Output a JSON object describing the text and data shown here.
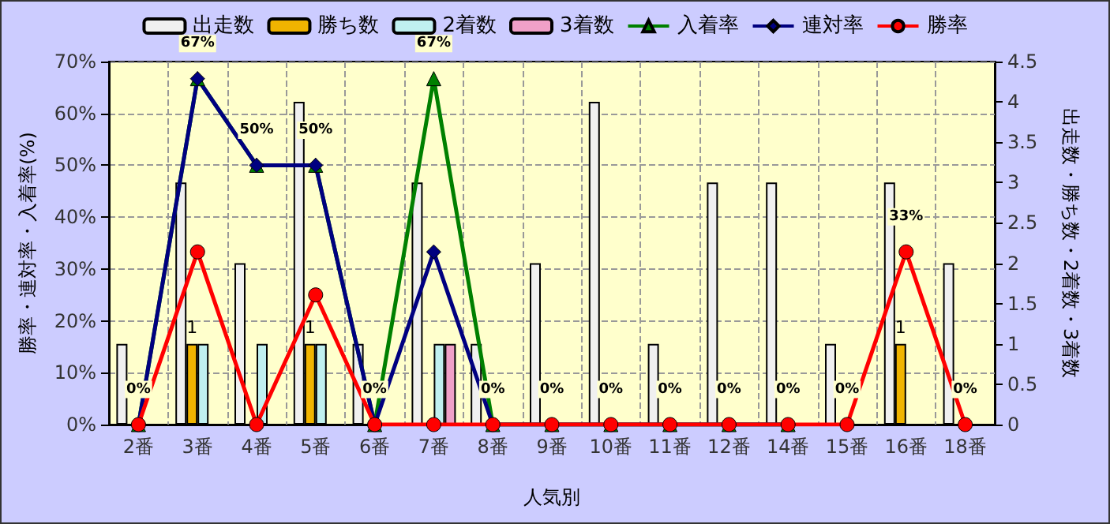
{
  "chart_data": {
    "type": "bar",
    "xlabel": "人気別",
    "ylabel": "勝率・連対率・入着率(%)",
    "y2label": "出走数・勝ち数・2着数・3着数",
    "categories": [
      "2番",
      "3番",
      "4番",
      "5番",
      "6番",
      "7番",
      "8番",
      "9番",
      "10番",
      "11番",
      "12番",
      "14番",
      "15番",
      "16番",
      "18番"
    ],
    "series": [
      {
        "name": "出走数",
        "axis": "y2",
        "color": "#f0f0f0",
        "values": [
          1,
          3,
          2,
          4,
          1,
          3,
          1,
          2,
          4,
          1,
          3,
          3,
          1,
          3,
          2
        ]
      },
      {
        "name": "勝ち数",
        "axis": "y2",
        "color": "#f0b400",
        "values": [
          0,
          1,
          0,
          1,
          0,
          0,
          0,
          0,
          0,
          0,
          0,
          0,
          0,
          1,
          0
        ],
        "value_labels": [
          null,
          "1",
          null,
          "1",
          null,
          null,
          null,
          null,
          null,
          null,
          null,
          null,
          null,
          "1",
          null
        ]
      },
      {
        "name": "2着数",
        "axis": "y2",
        "color": "#c0f0f0",
        "values": [
          0,
          1,
          1,
          1,
          0,
          1,
          0,
          0,
          0,
          0,
          0,
          0,
          0,
          0,
          0
        ]
      },
      {
        "name": "3着数",
        "axis": "y2",
        "color": "#f0a0c8",
        "values": [
          0,
          0,
          0,
          0,
          0,
          1,
          0,
          0,
          0,
          0,
          0,
          0,
          0,
          0,
          0
        ]
      },
      {
        "name": "入着率",
        "type": "line",
        "marker": "triangle",
        "color": "#008000",
        "values": [
          0,
          66.7,
          50,
          50,
          0,
          66.7,
          0,
          0,
          0,
          0,
          0,
          0,
          null,
          null,
          null
        ],
        "value_labels": [
          null,
          "67%",
          "50%",
          "50%",
          null,
          "67%",
          null,
          null,
          null,
          null,
          null,
          null,
          null,
          null,
          null
        ]
      },
      {
        "name": "連対率",
        "type": "line",
        "marker": "diamond",
        "color": "#000080",
        "values": [
          0,
          66.7,
          50,
          50,
          0,
          33.3,
          0,
          0,
          0,
          0,
          0,
          0,
          null,
          null,
          null
        ]
      },
      {
        "name": "勝率",
        "type": "line",
        "marker": "circle",
        "color": "#ff0000",
        "values": [
          0,
          33.3,
          0,
          25,
          0,
          0,
          0,
          0,
          0,
          0,
          0,
          0,
          0,
          33.3,
          0
        ],
        "value_labels": [
          "0%",
          null,
          null,
          null,
          "0%",
          null,
          "0%",
          "0%",
          "0%",
          "0%",
          "0%",
          "0%",
          "0%",
          "33%",
          "0%"
        ]
      }
    ],
    "ylim": [
      0,
      70
    ],
    "yticks": [
      {
        "value": 0,
        "label": "0%"
      },
      {
        "value": 10,
        "label": "10%"
      },
      {
        "value": 20,
        "label": "20%"
      },
      {
        "value": 30,
        "label": "30%"
      },
      {
        "value": 40,
        "label": "40%"
      },
      {
        "value": 50,
        "label": "50%"
      },
      {
        "value": 60,
        "label": "60%"
      },
      {
        "value": 70,
        "label": "70%"
      }
    ],
    "y2lim": [
      0,
      4.5
    ],
    "y2ticks": [
      0,
      0.5,
      1,
      1.5,
      2,
      2.5,
      3,
      3.5,
      4,
      4.5
    ],
    "grid": true,
    "legend": "top"
  }
}
